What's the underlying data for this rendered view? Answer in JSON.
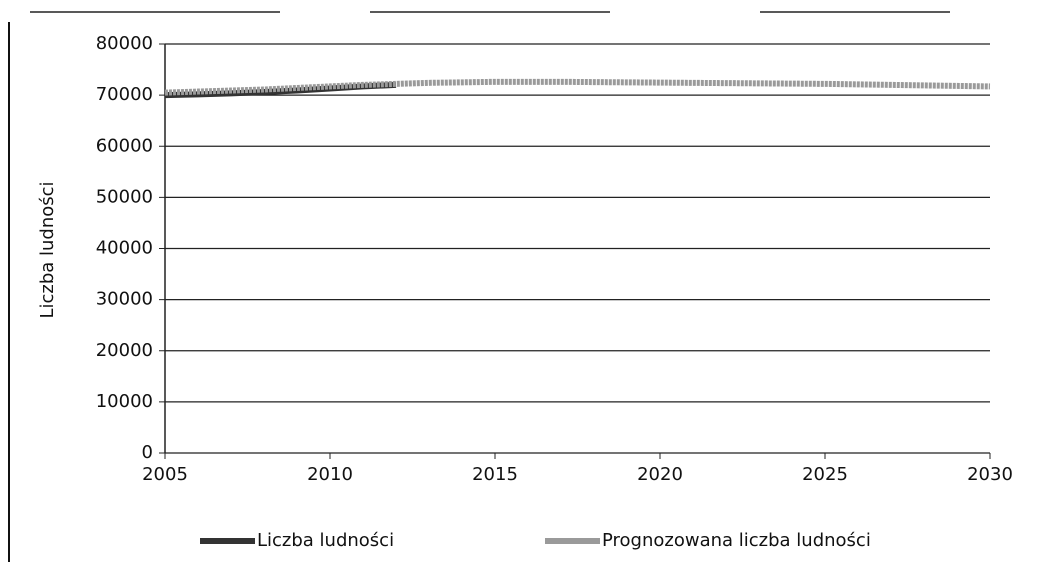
{
  "chart_data": {
    "type": "line",
    "ylabel": "Liczba ludności",
    "x": [
      2005,
      2006,
      2007,
      2008,
      2009,
      2010,
      2011,
      2012,
      2013,
      2014,
      2015,
      2016,
      2017,
      2018,
      2019,
      2020,
      2021,
      2022,
      2023,
      2024,
      2025,
      2026,
      2027,
      2028,
      2029,
      2030
    ],
    "series": [
      {
        "name": "Liczba ludności",
        "color": "#333333",
        "values": [
          70000,
          70150,
          70350,
          70600,
          70900,
          71300,
          71700,
          72000,
          null,
          null,
          null,
          null,
          null,
          null,
          null,
          null,
          null,
          null,
          null,
          null,
          null,
          null,
          null,
          null,
          null,
          null
        ]
      },
      {
        "name": "Prognozowana liczba ludności",
        "color": "#9a9a9a",
        "values": [
          70500,
          70700,
          70900,
          71100,
          71400,
          71700,
          72000,
          72200,
          72400,
          72500,
          72600,
          72600,
          72600,
          72550,
          72500,
          72450,
          72400,
          72350,
          72300,
          72250,
          72200,
          72100,
          72000,
          71900,
          71800,
          71700
        ]
      }
    ],
    "xlim": [
      2005,
      2030
    ],
    "xticks": [
      2005,
      2010,
      2015,
      2020,
      2025,
      2030
    ],
    "ylim": [
      0,
      80000
    ],
    "yticks": [
      0,
      10000,
      20000,
      30000,
      40000,
      50000,
      60000,
      70000,
      80000
    ],
    "grid": true,
    "legend": "bottom"
  }
}
